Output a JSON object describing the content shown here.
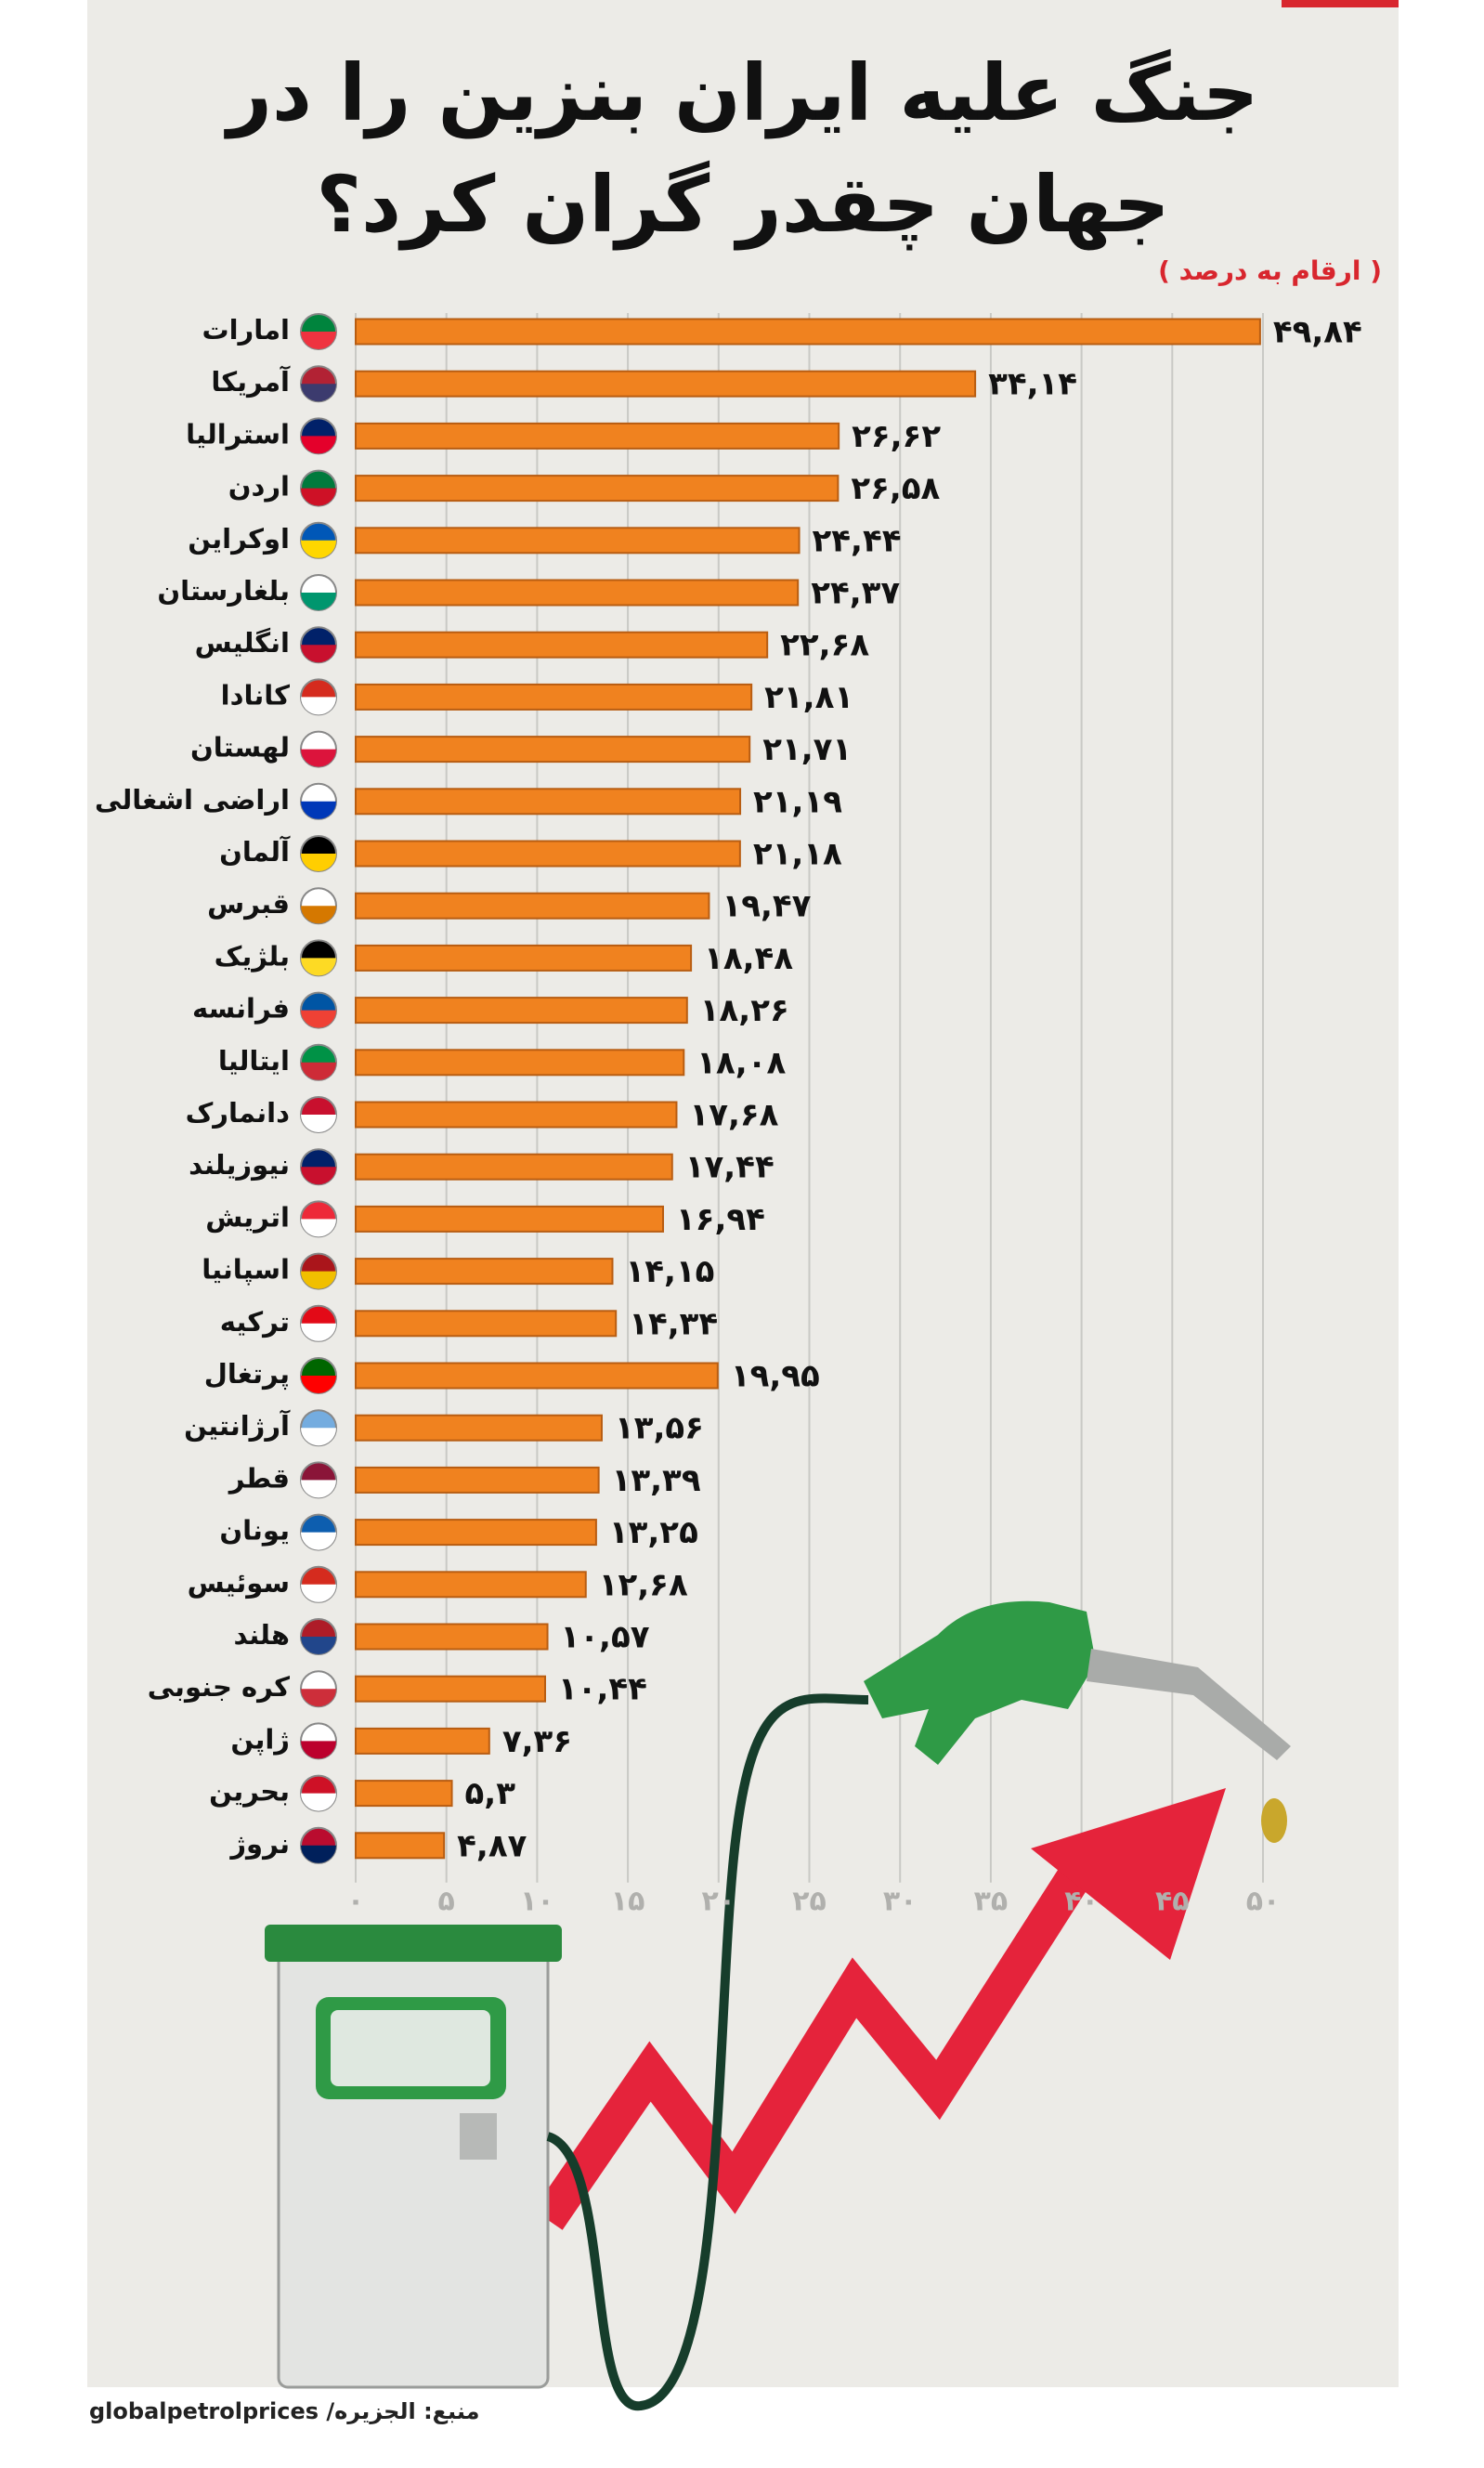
{
  "chart_data": {
    "type": "bar",
    "orientation": "horizontal",
    "title": "جنگ علیه ایران بنزین را در جهان چقدر گران کرد؟",
    "subtitle": "( ارقام به درصد )",
    "source": "منبع: الجزیره/ globalpetrolprices",
    "categories": [
      "امارات",
      "آمریکا",
      "استرالیا",
      "اردن",
      "اوکراین",
      "بلغارستان",
      "انگلیس",
      "کانادا",
      "لهستان",
      "اراضی اشغالی",
      "آلمان",
      "قبرس",
      "بلژیک",
      "فرانسه",
      "ایتالیا",
      "دانمارک",
      "نیوزیلند",
      "اتریش",
      "اسپانیا",
      "ترکیه",
      "پرتغال",
      "آرژانتین",
      "قطر",
      "یونان",
      "سوئیس",
      "هلند",
      "کره جنوبی",
      "ژاپن",
      "بحرین",
      "نروژ"
    ],
    "values": [
      49.84,
      34.14,
      26.62,
      26.58,
      24.44,
      24.37,
      22.68,
      21.81,
      21.71,
      21.19,
      21.18,
      19.47,
      18.48,
      18.26,
      18.08,
      17.68,
      17.44,
      16.94,
      14.15,
      14.34,
      19.95,
      13.56,
      13.39,
      13.25,
      12.68,
      10.57,
      10.44,
      7.36,
      5.3,
      4.87
    ],
    "value_labels": [
      "۴۹,۸۴",
      "۳۴,۱۴",
      "۲۶,۶۲",
      "۲۶,۵۸",
      "۲۴,۴۴",
      "۲۴,۳۷",
      "۲۲,۶۸",
      "۲۱,۸۱",
      "۲۱,۷۱",
      "۲۱,۱۹",
      "۲۱,۱۸",
      "۱۹,۴۷",
      "۱۸,۴۸",
      "۱۸,۲۶",
      "۱۸,۰۸",
      "۱۷,۶۸",
      "۱۷,۴۴",
      "۱۶,۹۴",
      "۱۴,۱۵",
      "۱۴,۳۴",
      "۱۹,۹۵",
      "۱۳,۵۶",
      "۱۳,۳۹",
      "۱۳,۲۵",
      "۱۲,۶۸",
      "۱۰,۵۷",
      "۱۰,۴۴",
      "۷,۳۶",
      "۵,۳",
      "۴,۸۷"
    ],
    "color": "#f0821f",
    "xlim": [
      0,
      50
    ],
    "xticks": [
      {
        "value": 0,
        "label": "۰"
      },
      {
        "value": 5,
        "label": "۵"
      },
      {
        "value": 10,
        "label": "۱۰"
      },
      {
        "value": 15,
        "label": "۱۵"
      },
      {
        "value": 20,
        "label": "۲۰"
      },
      {
        "value": 25,
        "label": "۲۵"
      },
      {
        "value": 30,
        "label": "۳۰"
      },
      {
        "value": 35,
        "label": "۳۵"
      },
      {
        "value": 40,
        "label": "۴۰"
      },
      {
        "value": 45,
        "label": "۴۵"
      },
      {
        "value": 50,
        "label": "۵۰"
      }
    ],
    "grid": true
  }
}
